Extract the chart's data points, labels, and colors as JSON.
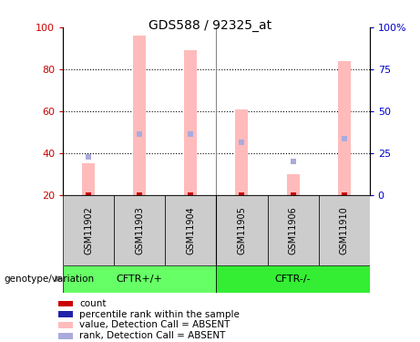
{
  "title": "GDS588 / 92325_at",
  "samples": [
    "GSM11902",
    "GSM11903",
    "GSM11904",
    "GSM11905",
    "GSM11906",
    "GSM11910"
  ],
  "bar_bottom": 20,
  "bar_top": [
    35,
    96,
    89,
    61,
    30,
    84
  ],
  "rank_y": [
    38,
    49,
    49,
    45,
    36,
    47
  ],
  "count_y": [
    20,
    20,
    20,
    20,
    20,
    20
  ],
  "bar_color": "#ffbbbb",
  "rank_color": "#aaaadd",
  "count_color": "#cc0000",
  "blue_marker_color": "#3333bb",
  "ylim_left": [
    20,
    100
  ],
  "yticks_left": [
    20,
    40,
    60,
    80,
    100
  ],
  "yticks_right": [
    0,
    25,
    50,
    75,
    100
  ],
  "ytick_labels_right": [
    "0",
    "25",
    "50",
    "75",
    "100%"
  ],
  "left_tick_color": "#cc0000",
  "right_tick_color": "#0000cc",
  "bar_width": 0.25,
  "group1_label": "CFTR+/+",
  "group2_label": "CFTR-/-",
  "group1_color": "#66ff66",
  "group2_color": "#33ee33",
  "genotype_label": "genotype/variation",
  "legend_items": [
    {
      "label": "count",
      "color": "#cc0000"
    },
    {
      "label": "percentile rank within the sample",
      "color": "#2222aa"
    },
    {
      "label": "value, Detection Call = ABSENT",
      "color": "#ffbbbb"
    },
    {
      "label": "rank, Detection Call = ABSENT",
      "color": "#aaaadd"
    }
  ],
  "grid_lines": [
    40,
    60,
    80
  ],
  "vline_color": "#888888"
}
